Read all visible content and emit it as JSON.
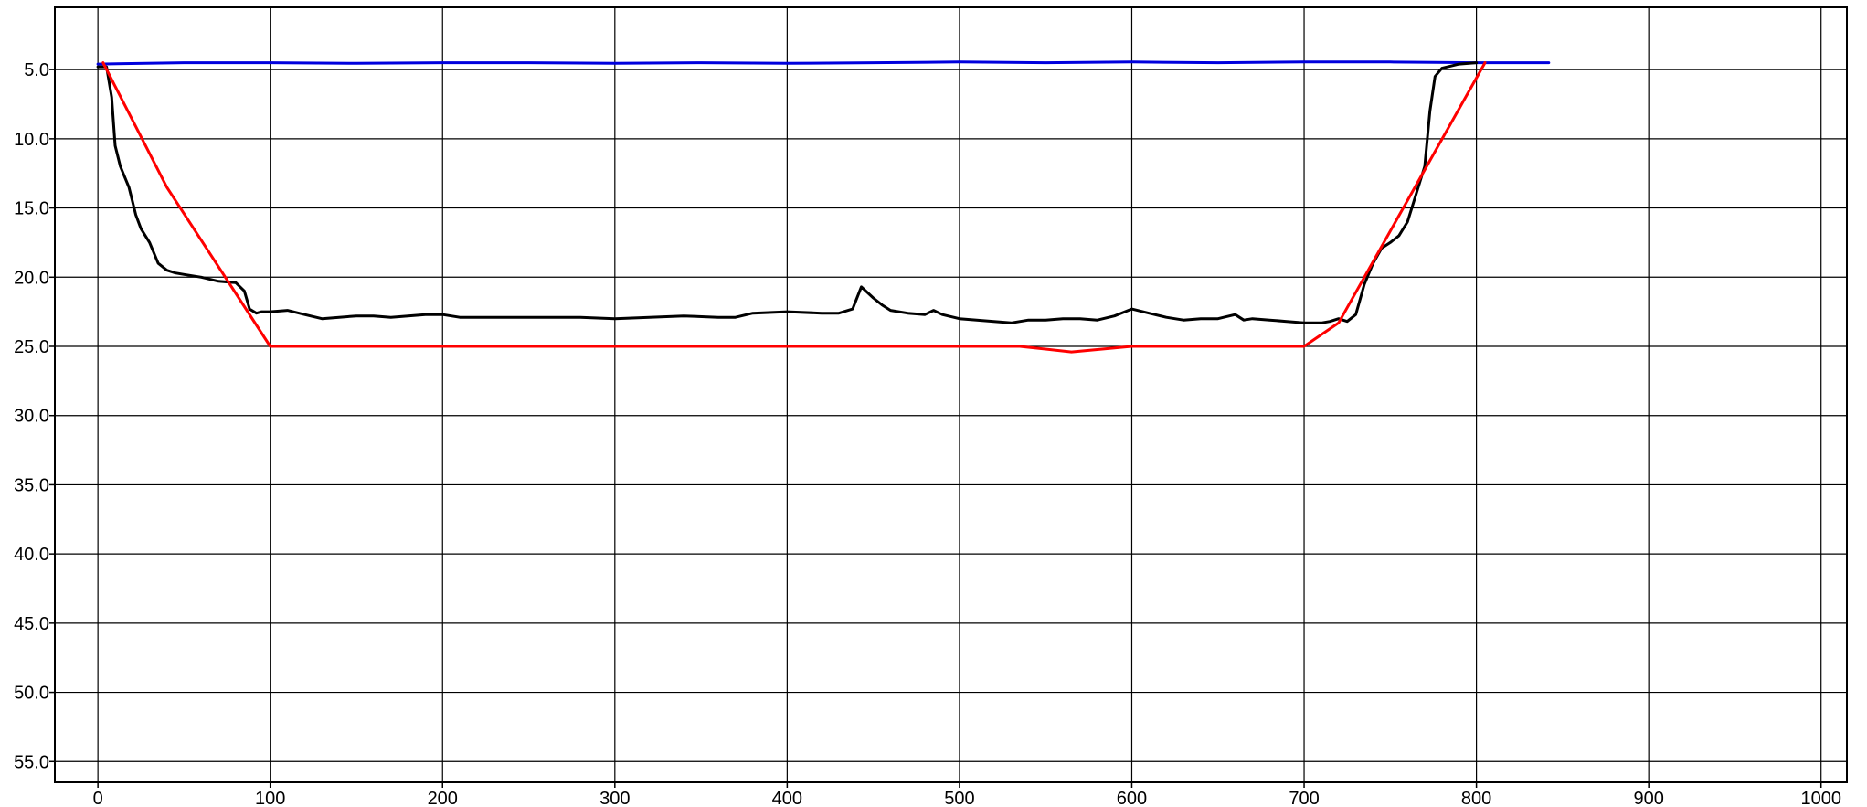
{
  "chart_data": {
    "type": "line",
    "title": "",
    "xlabel": "",
    "ylabel": "",
    "xlim": [
      -25,
      1015
    ],
    "ylim": [
      0.5,
      56.5
    ],
    "y_inverted": true,
    "grid": true,
    "x_ticks": [
      0,
      100,
      200,
      300,
      400,
      500,
      600,
      700,
      800,
      900,
      1000
    ],
    "x_tick_labels": [
      "0",
      "100",
      "200",
      "300",
      "400",
      "500",
      "600",
      "700",
      "800",
      "900",
      "1000"
    ],
    "y_ticks": [
      5,
      10,
      15,
      20,
      25,
      30,
      35,
      40,
      45,
      50,
      55
    ],
    "y_tick_labels": [
      "5.0",
      "10.0",
      "15.0",
      "20.0",
      "25.0",
      "30.0",
      "35.0",
      "40.0",
      "45.0",
      "50.0",
      "55.0"
    ],
    "series": [
      {
        "color": "#0000dd",
        "x": [
          0,
          50,
          100,
          150,
          200,
          250,
          300,
          350,
          400,
          450,
          500,
          550,
          600,
          650,
          700,
          750,
          800,
          842
        ],
        "y": [
          4.6,
          4.5,
          4.5,
          4.55,
          4.5,
          4.5,
          4.55,
          4.5,
          4.55,
          4.5,
          4.45,
          4.5,
          4.45,
          4.5,
          4.45,
          4.45,
          4.5,
          4.5
        ]
      },
      {
        "color": "#000000",
        "x": [
          0,
          5,
          8,
          10,
          13,
          18,
          22,
          25,
          30,
          35,
          40,
          45,
          50,
          60,
          70,
          80,
          85,
          88,
          92,
          95,
          100,
          110,
          120,
          130,
          140,
          150,
          160,
          170,
          180,
          190,
          200,
          210,
          220,
          240,
          260,
          280,
          300,
          320,
          340,
          360,
          370,
          380,
          400,
          420,
          430,
          438,
          443,
          450,
          455,
          460,
          470,
          480,
          485,
          490,
          500,
          510,
          520,
          530,
          540,
          550,
          560,
          570,
          580,
          590,
          600,
          610,
          620,
          630,
          640,
          650,
          660,
          665,
          670,
          680,
          690,
          700,
          710,
          715,
          720,
          725,
          730,
          735,
          740,
          745,
          750,
          755,
          760,
          765,
          770,
          773,
          776,
          780,
          790,
          800
        ],
        "y": [
          4.8,
          4.8,
          7.0,
          10.5,
          12.0,
          13.5,
          15.5,
          16.5,
          17.5,
          19.0,
          19.5,
          19.7,
          19.8,
          20.0,
          20.3,
          20.4,
          21.0,
          22.3,
          22.6,
          22.5,
          22.5,
          22.4,
          22.7,
          23.0,
          22.9,
          22.8,
          22.8,
          22.9,
          22.8,
          22.7,
          22.7,
          22.9,
          22.9,
          22.9,
          22.9,
          22.9,
          23.0,
          22.9,
          22.8,
          22.9,
          22.9,
          22.6,
          22.5,
          22.6,
          22.6,
          22.3,
          20.7,
          21.5,
          22.0,
          22.4,
          22.6,
          22.7,
          22.4,
          22.7,
          23.0,
          23.1,
          23.2,
          23.3,
          23.1,
          23.1,
          23.0,
          23.0,
          23.1,
          22.8,
          22.3,
          22.6,
          22.9,
          23.1,
          23.0,
          23.0,
          22.7,
          23.1,
          23.0,
          23.1,
          23.2,
          23.3,
          23.3,
          23.2,
          23.0,
          23.2,
          22.7,
          20.5,
          19.0,
          17.9,
          17.5,
          17.0,
          16.0,
          14.0,
          12.0,
          8.0,
          5.5,
          4.9,
          4.6,
          4.5
        ]
      },
      {
        "color": "#ff0000",
        "x": [
          3,
          40,
          100,
          535,
          565,
          600,
          700,
          720,
          805
        ],
        "y": [
          4.5,
          13.5,
          25.0,
          25.0,
          25.4,
          25.0,
          25.0,
          23.3,
          4.5
        ]
      }
    ]
  }
}
